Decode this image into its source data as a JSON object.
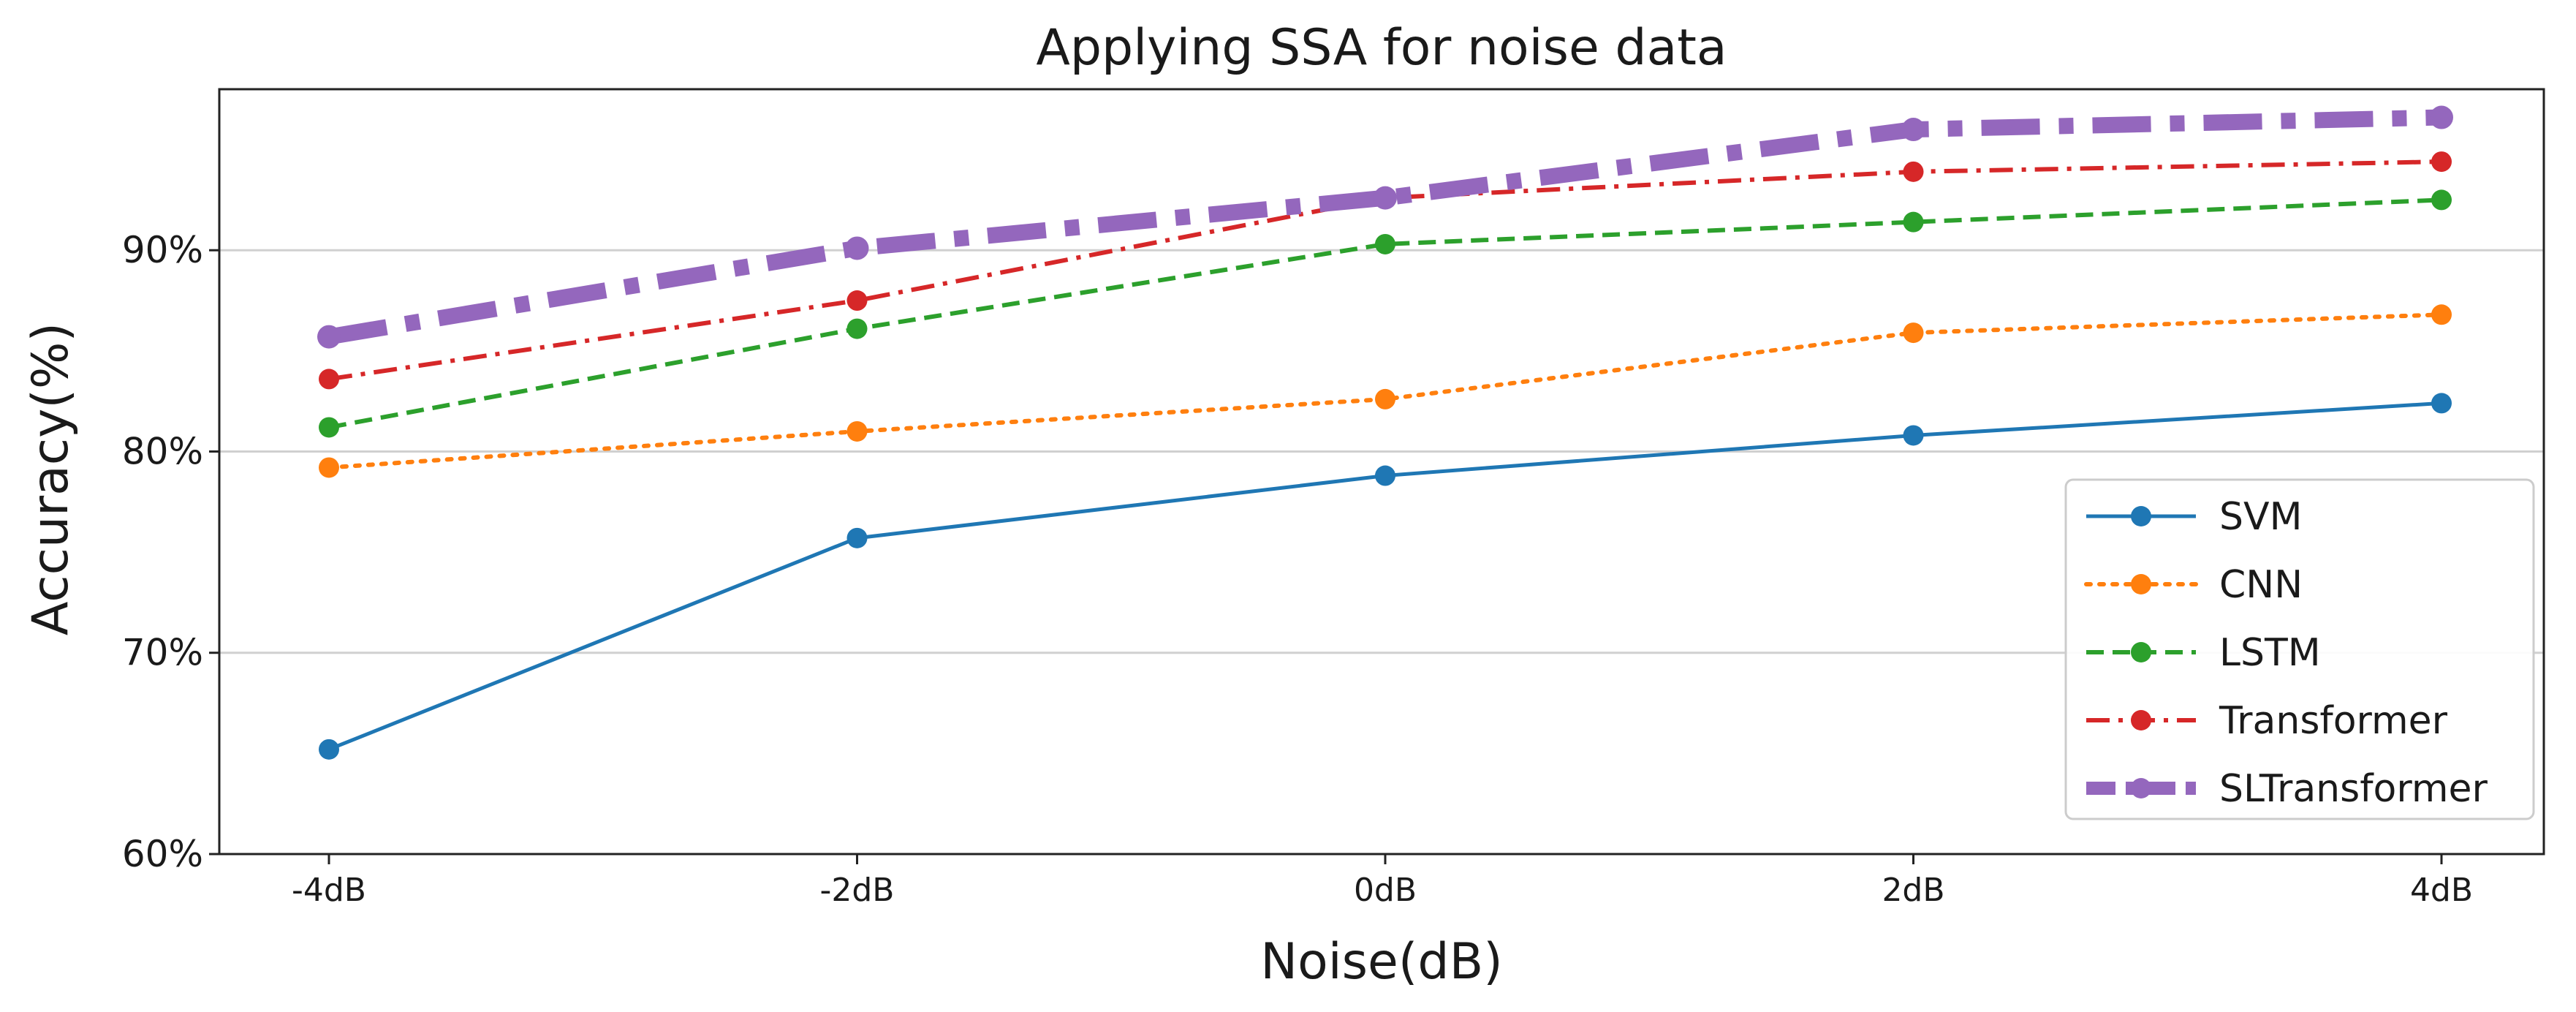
{
  "chart_data": {
    "type": "line",
    "title": "Applying SSA for noise data",
    "xlabel": "Noise(dB)",
    "ylabel": "Accuracy(%)",
    "categories": [
      "-4dB",
      "-2dB",
      "0dB",
      "2dB",
      "4dB"
    ],
    "ylim": [
      60,
      98
    ],
    "yticks": [
      {
        "value": 60,
        "label": "60%"
      },
      {
        "value": 70,
        "label": "70%"
      },
      {
        "value": 80,
        "label": "80%"
      },
      {
        "value": 90,
        "label": "90%"
      }
    ],
    "grid": "horizontal",
    "legend_position": "bottom-right",
    "series": [
      {
        "name": "SVM",
        "values": [
          65.2,
          75.7,
          78.8,
          80.8,
          82.4
        ],
        "color": "#1f77b4",
        "style": "solid"
      },
      {
        "name": "CNN",
        "values": [
          79.2,
          81.0,
          82.6,
          85.9,
          86.8
        ],
        "color": "#ff7f0e",
        "style": "dotted"
      },
      {
        "name": "LSTM",
        "values": [
          81.2,
          86.1,
          90.3,
          91.4,
          92.5
        ],
        "color": "#2ca02c",
        "style": "dashed"
      },
      {
        "name": "Transformer",
        "values": [
          83.6,
          87.5,
          92.6,
          93.9,
          94.4
        ],
        "color": "#d62728",
        "style": "dashdot"
      },
      {
        "name": "SLTransformer",
        "values": [
          85.7,
          90.1,
          92.6,
          96.0,
          96.6
        ],
        "color": "#9467bd",
        "style": "dashdot-thick"
      }
    ]
  }
}
